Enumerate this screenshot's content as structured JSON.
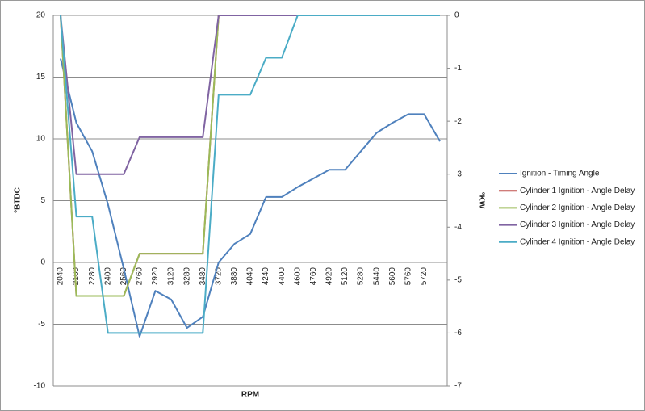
{
  "chart_data": {
    "type": "line",
    "categories": [
      "2040",
      "2160",
      "2280",
      "2400",
      "2560",
      "2760",
      "2920",
      "3120",
      "3280",
      "3480",
      "3720",
      "3880",
      "4040",
      "4240",
      "4400",
      "4600",
      "4760",
      "4920",
      "5120",
      "5280",
      "5440",
      "5600",
      "5760",
      "5720",
      null
    ],
    "xlabel": "RPM",
    "ylabel": "°BTDC",
    "y2label": "°KW",
    "ylim": [
      -10,
      20
    ],
    "yticks": [
      -10,
      -5,
      0,
      5,
      10,
      15,
      20
    ],
    "y2lim": [
      -7,
      0
    ],
    "y2ticks": [
      -7,
      -6,
      -5,
      -4,
      -3,
      -2,
      -1,
      0
    ],
    "grid": true,
    "legend": "right",
    "series": [
      {
        "name": "Ignition - Timing Angle",
        "color": "#4f81bd",
        "values": [
          16.5,
          11.3,
          9,
          4.7,
          -0.5,
          -6,
          -2.3,
          -3,
          -5.3,
          -4.4,
          0,
          1.5,
          2.3,
          5.3,
          5.3,
          6.1,
          6.8,
          7.5,
          7.5,
          9,
          10.5,
          11.3,
          12,
          12,
          9.8
        ]
      },
      {
        "name": "Cylinder 1 Ignition - Angle Delay",
        "color": "#c0504d",
        "axis": "y2",
        "values": [
          0,
          -5.3,
          -5.3,
          -5.3,
          -5.3,
          -4.5,
          -4.5,
          -4.5,
          -4.5,
          -4.5,
          0,
          0,
          0,
          0,
          0,
          0,
          0,
          0,
          0,
          0,
          0,
          0,
          0,
          0,
          0
        ]
      },
      {
        "name": "Cylinder 2 Ignition - Angle Delay",
        "color": "#9bbb59",
        "axis": "y2",
        "values": [
          0,
          -5.3,
          -5.3,
          -5.3,
          -5.3,
          -4.5,
          -4.5,
          -4.5,
          -4.5,
          -4.5,
          0,
          0,
          0,
          0,
          0,
          0,
          0,
          0,
          0,
          0,
          0,
          0,
          0,
          0,
          0
        ]
      },
      {
        "name": "Cylinder 3 Ignition - Angle Delay",
        "color": "#8064a2",
        "axis": "y2",
        "values": [
          0,
          -3,
          -3,
          -3,
          -3,
          -2.3,
          -2.3,
          -2.3,
          -2.3,
          -2.3,
          0,
          0,
          0,
          0,
          0,
          0,
          0,
          0,
          0,
          0,
          0,
          0,
          0,
          0,
          0
        ]
      },
      {
        "name": "Cylinder 4 Ignition - Angle Delay",
        "color": "#4bacc6",
        "axis": "y2",
        "values": [
          0,
          -3.8,
          -3.8,
          -6,
          -6,
          -6,
          -6,
          -6,
          -6,
          -6,
          -1.5,
          -1.5,
          -1.5,
          -0.8,
          -0.8,
          0,
          0,
          0,
          0,
          0,
          0,
          0,
          0,
          0,
          0
        ]
      }
    ]
  }
}
